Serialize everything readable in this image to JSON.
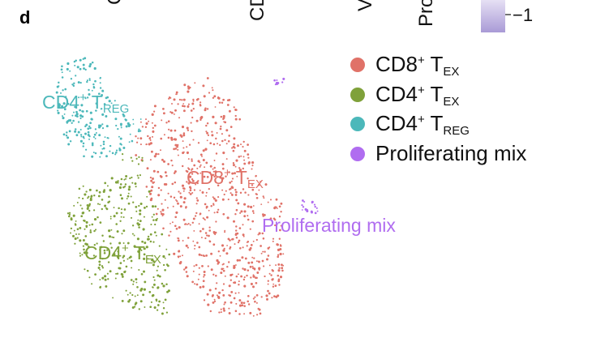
{
  "panel_letter": "d",
  "top_cropped_labels": [
    "C",
    "CD",
    "V",
    "Pro"
  ],
  "colorbar": {
    "tick_label": "−1",
    "color": "#a99ad6"
  },
  "chart_data": {
    "type": "scatter",
    "title": "",
    "xlabel": "",
    "ylabel": "",
    "grid": false,
    "legend_position": "top-right",
    "legend": [
      {
        "main": "CD8",
        "sup": "+",
        "space": " T",
        "sub": "EX",
        "color": "#e07268"
      },
      {
        "main": "CD4",
        "sup": "+",
        "space": " T",
        "sub": "EX",
        "color": "#7fa13a"
      },
      {
        "main": "CD4",
        "sup": "+",
        "space": " T",
        "sub": "REG",
        "color": "#4cb8ba"
      },
      {
        "main": "Proliferating mix",
        "sup": "",
        "space": "",
        "sub": "",
        "color": "#b06df0"
      }
    ],
    "series": [
      {
        "name": "CD8+ TEX",
        "color": "#e07268",
        "label": {
          "main": "CD8",
          "sup": "+",
          "space": " T",
          "sub": "EX"
        }
      },
      {
        "name": "CD4+ TEX",
        "color": "#7fa13a",
        "label": {
          "main": "CD4",
          "sup": "+",
          "space": " T",
          "sub": "EX"
        }
      },
      {
        "name": "CD4+ TREG",
        "color": "#4cb8ba",
        "label": {
          "main": "CD4",
          "sup": "+",
          "space": " T",
          "sub": "REG"
        }
      },
      {
        "name": "Proliferating mix",
        "color": "#b06df0",
        "label": {
          "main": "Proliferating mix",
          "sup": "",
          "space": "",
          "sub": ""
        }
      }
    ]
  }
}
